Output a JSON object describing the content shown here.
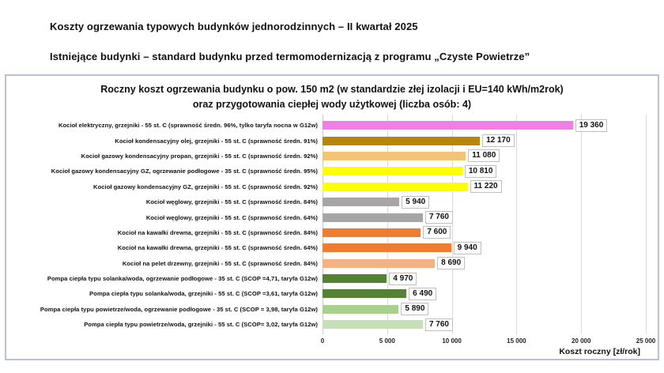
{
  "header": {
    "line1": "Koszty ogrzewania typowych budynków jednorodzinnych – II kwartał 2025",
    "line2": "Istniejące budynki – standard budynku przed termomodernizacją z programu „Czyste Powietrze”"
  },
  "chart_data": {
    "type": "bar",
    "orientation": "horizontal",
    "title_line1": "Roczny koszt ogrzewania budynku o pow. 150 m2 (w standardzie złej izolacji i EU=140 kWh/m2rok)",
    "title_line2": "oraz przygotowania ciepłej wody użytkowej (liczba osób: 4)",
    "xlabel": "Koszt roczny [zł/rok]",
    "xlim": [
      0,
      25000
    ],
    "xticks": [
      {
        "value": 0,
        "label": "0"
      },
      {
        "value": 5000,
        "label": "5 000"
      },
      {
        "value": 10000,
        "label": "10 000"
      },
      {
        "value": 15000,
        "label": "15 000"
      },
      {
        "value": 20000,
        "label": "20 000"
      },
      {
        "value": 25000,
        "label": "25 000"
      }
    ],
    "grid": "vertical",
    "legend": "none",
    "rows": [
      {
        "label": "Kocioł  elektryczny,  grzejniki - 55 st. C  (sprawność średn. 96%, tylko taryfa nocna w G12w)",
        "value": 19360,
        "display": "19 360",
        "color": "#F07EE6"
      },
      {
        "label": "Kocioł  kondensacyjny olej,  grzejniki - 55 st. C (sprawność średn. 91%)",
        "value": 12170,
        "display": "12 170",
        "color": "#B8860B"
      },
      {
        "label": "Kocioł gazowy kondensacyjny propan, grzejniki - 55 st. C (sprawność średn. 92%)",
        "value": 11080,
        "display": "11 080",
        "color": "#F3C377"
      },
      {
        "label": "Kocioł gazowy kondensacyjny GZ, ogrzewanie podłogowe - 35 st. C (sprawność średn. 95%)",
        "value": 10810,
        "display": "10 810",
        "color": "#FFFF00"
      },
      {
        "label": "Kocioł gazowy kondensacyjny GZ, grzejniki - 55 st. C (sprawność średn. 92%)",
        "value": 11220,
        "display": "11 220",
        "color": "#FFFF00"
      },
      {
        "label": "Kocioł węglowy,  grzejniki - 55 st. C (sprawność średn. 84%)",
        "value": 5940,
        "display": "5 940",
        "color": "#A6A6A6"
      },
      {
        "label": "Kocioł węglowy,  grzejniki - 55 st. C (sprawność średn. 64%)",
        "value": 7760,
        "display": "7 760",
        "color": "#A6A6A6"
      },
      {
        "label": "Kocioł na kawałki drewna, grzejniki - 55 st. C (sprawność średn. 84%)",
        "value": 7600,
        "display": "7 600",
        "color": "#ED7D31"
      },
      {
        "label": "Kocioł na kawałki drewna, grzejniki - 55 st. C (sprawność średn. 64%)",
        "value": 9940,
        "display": "9 940",
        "color": "#ED7D31"
      },
      {
        "label": "Kocioł na pelet drzewny, grzejniki - 55 st. C (sprawność średn. 84%)",
        "value": 8690,
        "display": "8 690",
        "color": "#F4B183"
      },
      {
        "label": "Pompa ciepła typu solanka/woda, ogrzewanie podłogowe - 35 st. C (SCOP =4,71, taryfa G12w)",
        "value": 4970,
        "display": "4 970",
        "color": "#548235"
      },
      {
        "label": "Pompa ciepła typu solanka/woda, grzejniki - 55 st. C (SCOP =3,61, taryfa G12w)",
        "value": 6490,
        "display": "6 490",
        "color": "#548235"
      },
      {
        "label": "Pompa ciepła typu powietrze/woda, ogrzewanie podłogowe - 35 st. C (SCOP = 3,98, taryfa G12w)",
        "value": 5890,
        "display": "5 890",
        "color": "#A9D18E"
      },
      {
        "label": "Pompa ciepła typu powietrze/woda, grzejniki - 55 st. C (SCOP= 3,02, taryfa G12w)",
        "value": 7760,
        "display": "7 760",
        "color": "#C5E0B4"
      }
    ]
  }
}
